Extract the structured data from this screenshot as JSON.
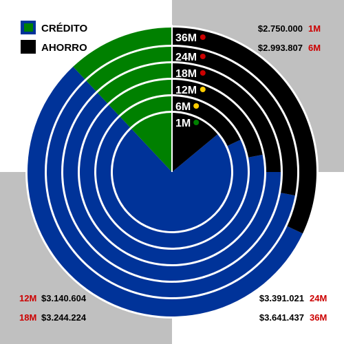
{
  "colors": {
    "credito": "#003399",
    "ahorro": "#000000",
    "green": "#008000",
    "red": "#cc0000",
    "gray": "#c0c0c0"
  },
  "legend": [
    {
      "label": "CRÉDITO",
      "color": "#008000"
    },
    {
      "label": "AHORRO",
      "color": "#000000"
    }
  ],
  "corner_labels": {
    "top_right": [
      {
        "value": "$2.750.000",
        "term": "1M"
      },
      {
        "value": "$2.993.807",
        "term": "6M"
      }
    ],
    "bottom_left": [
      {
        "term": "12M",
        "value": "$3.140.604"
      },
      {
        "term": "18M",
        "value": "$3.244.224"
      }
    ],
    "bottom_right": [
      {
        "value": "$3.391.021",
        "term": "24M"
      },
      {
        "value": "$3.641.437",
        "term": "36M"
      }
    ]
  },
  "chart_data": {
    "type": "pie",
    "title": "",
    "categories": [
      "1M",
      "6M",
      "12M",
      "18M",
      "24M",
      "36M"
    ],
    "series": [
      {
        "name": "CRÉDITO",
        "values": [
          12,
          12,
          12,
          12,
          12,
          12
        ]
      },
      {
        "name": "AHORRO",
        "values": [
          14,
          18,
          22,
          25,
          28,
          32
        ]
      }
    ],
    "ring_labels": [
      {
        "label": "1M",
        "dot": "#008000"
      },
      {
        "label": "6M",
        "dot": "#ffcc00"
      },
      {
        "label": "12M",
        "dot": "#ffcc00"
      },
      {
        "label": "18M",
        "dot": "#cc0000"
      },
      {
        "label": "24M",
        "dot": "#cc0000"
      },
      {
        "label": "36M",
        "dot": "#cc0000"
      }
    ]
  }
}
